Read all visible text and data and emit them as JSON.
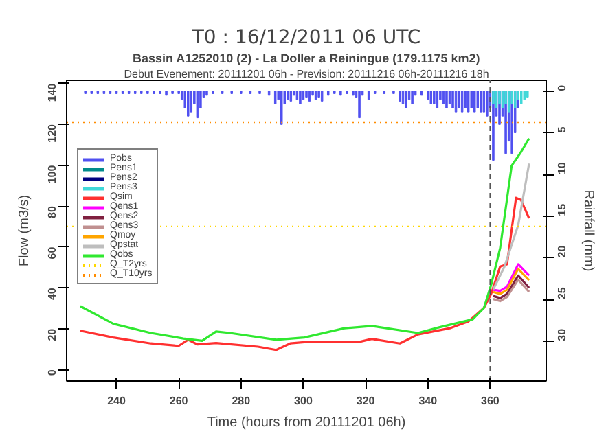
{
  "chart_data": {
    "type": "line",
    "title": "T0 : 16/12/2011 06 UTC",
    "subtitle": "Bassin A1252010 (2) - La Doller a Reiningue (179.1175 km2)",
    "annotations": [
      "Debut Evenement: 20111201 06h - Prevision: 20111216 06h-20111216 18h"
    ],
    "xlabel": "Time (hours from 20111201 06h)",
    "ylabel": "Flow (m3/s)",
    "y2label": "Rainfall (mm)",
    "xlim": [
      224,
      378
    ],
    "xticks": [
      240,
      260,
      280,
      300,
      320,
      340,
      360
    ],
    "ylim": [
      -5.6,
      141.5
    ],
    "yticks": [
      0,
      20,
      40,
      60,
      80,
      100,
      120,
      140
    ],
    "y2lim": [
      34.8,
      -1.3
    ],
    "y2ticks": [
      0,
      5,
      10,
      15,
      20,
      25,
      30
    ],
    "grid": false,
    "legend": "top left",
    "series": [
      {
        "name": "Pobs",
        "type": "bar",
        "axis": "y2",
        "color": "#5050f0",
        "x": [
          230,
          232,
          234,
          236,
          238,
          240,
          242,
          244,
          246,
          248,
          250,
          252,
          254,
          256,
          258,
          260,
          261,
          262,
          263,
          264,
          265,
          266,
          267,
          268,
          269,
          271,
          274,
          277,
          280,
          283,
          286,
          289,
          291,
          292,
          293,
          294,
          295,
          296,
          297,
          298,
          299,
          300,
          301,
          302,
          303,
          304,
          305,
          306,
          308,
          310,
          312,
          314,
          316,
          317,
          318,
          319,
          321,
          323,
          326,
          329,
          331,
          332,
          333,
          334,
          335,
          336,
          338,
          340,
          341,
          342,
          343,
          344,
          345,
          346,
          347,
          348,
          349,
          350,
          351,
          352,
          353,
          354,
          355,
          356,
          357,
          358,
          359,
          360,
          361,
          362,
          363,
          364,
          365,
          366,
          367,
          368,
          369
        ],
        "values": [
          0.3,
          0.3,
          0.3,
          0.3,
          0.3,
          0.3,
          0.3,
          0.3,
          0.3,
          0.3,
          0.3,
          0.3,
          0.3,
          0.5,
          0.3,
          0.3,
          1.0,
          2.0,
          3.0,
          2.5,
          1.5,
          3.2,
          2.0,
          0.8,
          0.5,
          0.3,
          0.3,
          0.3,
          0.3,
          0.3,
          0.3,
          0.5,
          1.5,
          1.0,
          4.0,
          1.5,
          1.0,
          1.2,
          0.5,
          1.0,
          1.5,
          1.0,
          0.8,
          1.2,
          0.5,
          1.0,
          0.8,
          1.2,
          0.5,
          0.3,
          0.5,
          0.3,
          0.5,
          0.8,
          3.2,
          0.5,
          1.0,
          0.3,
          0.3,
          0.3,
          1.2,
          1.5,
          2.0,
          1.0,
          1.5,
          0.5,
          0.5,
          1.0,
          1.5,
          1.5,
          2.0,
          1.0,
          1.5,
          2.0,
          1.5,
          2.0,
          2.5,
          2.0,
          2.5,
          2.0,
          2.5,
          2.0,
          2.5,
          2.0,
          2.5,
          2.5,
          3.0,
          2.0,
          8.3,
          3.0,
          4.0,
          3.0,
          7.5,
          6.0,
          7.5,
          5.0,
          2.0
        ]
      },
      {
        "name": "Pens1",
        "type": "bar",
        "axis": "y2",
        "color": "#008b8b"
      },
      {
        "name": "Pens2",
        "type": "bar",
        "axis": "y2",
        "color": "#000080"
      },
      {
        "name": "Pens3",
        "type": "bar",
        "axis": "y2",
        "color": "#40d8d8",
        "x": [
          361,
          362,
          363,
          364,
          365,
          366,
          367,
          368,
          369,
          370,
          371,
          372
        ],
        "values": [
          1.5,
          2.0,
          1.5,
          2.0,
          1.5,
          2.5,
          1.5,
          2.0,
          1.0,
          1.5,
          1.0,
          0.8
        ]
      },
      {
        "name": "Qsim",
        "color": "#ff3030",
        "x": [
          228.4,
          239,
          251,
          260,
          263,
          266,
          272,
          285.4,
          291.3,
          295.8,
          300.3,
          317.6,
          322,
          331,
          336.8,
          347,
          353,
          358,
          360.3,
          363.2,
          365.4,
          368.3,
          369.9,
          372.5
        ],
        "values": [
          19.0,
          15.7,
          12.8,
          11.6,
          14.6,
          12.3,
          13.0,
          11.2,
          9.6,
          12.8,
          13.4,
          13.4,
          15.0,
          12.8,
          17.2,
          20.2,
          23.5,
          30.2,
          37.0,
          50.4,
          51.5,
          84.0,
          83.0,
          74.0
        ]
      },
      {
        "name": "Qens1",
        "color": "#ff00ff",
        "x": [
          361,
          363.2,
          365.4,
          369,
          372.5
        ],
        "values": [
          39.0,
          38.5,
          40.5,
          51.5,
          46.0
        ]
      },
      {
        "name": "Qens2",
        "color": "#802040",
        "x": [
          361,
          363.2,
          365.4,
          369,
          372.5
        ],
        "values": [
          36.0,
          35.0,
          37.0,
          46.0,
          40.0
        ]
      },
      {
        "name": "Qens3",
        "color": "#c09090",
        "x": [
          361,
          363.2,
          365.4,
          369,
          372.5
        ],
        "values": [
          34.5,
          33.5,
          35.5,
          44.0,
          38.0
        ]
      },
      {
        "name": "Qmoy",
        "color": "#ffa500",
        "x": [
          361,
          363.2,
          365.4,
          369,
          372.5
        ],
        "values": [
          38.0,
          37.0,
          39.0,
          49.3,
          43.7
        ]
      },
      {
        "name": "Qpstat",
        "color": "#bebebe",
        "x": [
          361,
          364.6,
          369,
          372.5
        ],
        "values": [
          39.2,
          50.4,
          70.6,
          100.8
        ]
      },
      {
        "name": "Qobs",
        "color": "#30e830",
        "x": [
          228.4,
          239,
          251,
          261.5,
          267.5,
          272,
          276.4,
          291.3,
          300.3,
          313.2,
          322,
          336.8,
          344,
          354.4,
          358,
          360.3,
          363.2,
          366.9,
          369.9,
          372.5
        ],
        "values": [
          31.0,
          22.4,
          17.9,
          15.2,
          14.1,
          18.6,
          17.9,
          14.6,
          15.7,
          20.2,
          21.3,
          17.9,
          20.8,
          24.6,
          30.2,
          41.4,
          59.4,
          99.7,
          106.4,
          113.1
        ]
      }
    ],
    "ref_lines": [
      {
        "axis": "y",
        "value": 70,
        "label": "Q_T2yrs",
        "color": "#ffd700",
        "line_style": "dotted"
      },
      {
        "axis": "y",
        "value": 121,
        "label": "Q_T10yrs",
        "color": "#ff8c00",
        "line_style": "dotted"
      },
      {
        "axis": "x",
        "value": 360,
        "color": "#555555",
        "line_style": "dashed"
      }
    ]
  }
}
